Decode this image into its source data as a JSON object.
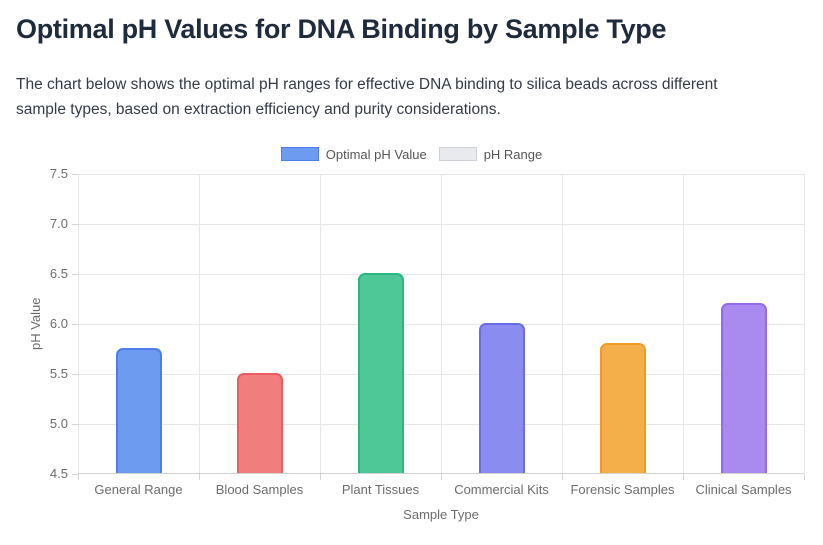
{
  "page": {
    "title": "Optimal pH Values for DNA Binding by Sample Type",
    "description": "The chart below shows the optimal pH ranges for effective DNA binding to silica beads across different sample types, based on extraction efficiency and purity considerations."
  },
  "chart_data": {
    "type": "bar",
    "title": "",
    "xlabel": "Sample Type",
    "ylabel": "pH Value",
    "ylim": [
      4.5,
      7.5
    ],
    "ytick_labels": [
      "7.5",
      "7.0",
      "6.5",
      "6.0",
      "5.5",
      "5.0",
      "4.5"
    ],
    "grid": true,
    "legend_position": "top",
    "legend": [
      {
        "label": "Optimal pH Value",
        "fill": "#6D9BF0",
        "border": "#4D7DEB"
      },
      {
        "label": "pH Range",
        "fill": "#E8EAED",
        "border": "#CDD2D9"
      }
    ],
    "categories": [
      "General Range",
      "Blood Samples",
      "Plant Tissues",
      "Commercial Kits",
      "Forensic Samples",
      "Clinical Samples"
    ],
    "series": [
      {
        "name": "Optimal pH Value",
        "values": [
          5.75,
          5.5,
          6.5,
          6.0,
          5.8,
          6.2
        ],
        "bar_fills": [
          "#6D9BF0",
          "#F27D7D",
          "#4FC897",
          "#8B8CF0",
          "#F4AE4A",
          "#A98BF0"
        ],
        "bar_borders": [
          "#4D7DEB",
          "#EA5C60",
          "#2BB780",
          "#696CE8",
          "#EE9C25",
          "#946AEA"
        ]
      }
    ]
  }
}
